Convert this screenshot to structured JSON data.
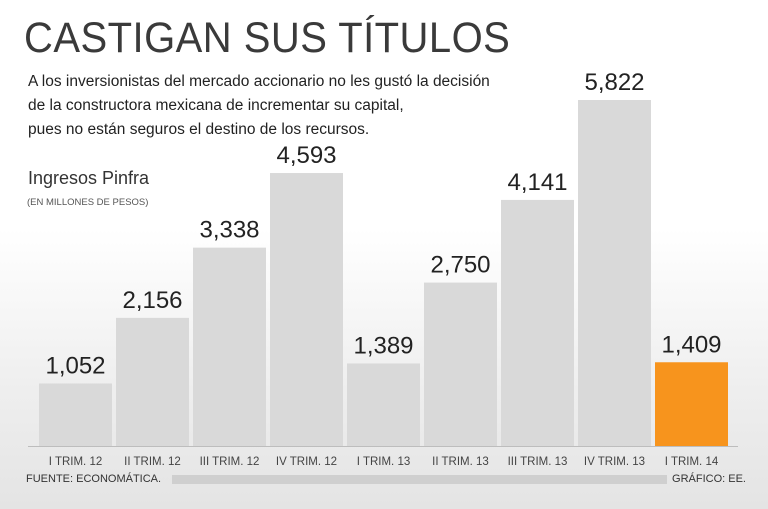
{
  "chart_data": {
    "type": "bar",
    "title": "CASTIGAN SUS TÍTULOS",
    "subtitle": [
      "A los inversionistas del mercado accionario no les gustó la decisión",
      "de la constructora mexicana de incrementar su capital,",
      "pues no están seguros el destino de los recursos."
    ],
    "ylabel": "Ingresos Pinfra",
    "units": "(EN MILLONES DE PESOS)",
    "categories": [
      "I TRIM. 12",
      "II TRIM. 12",
      "III TRIM. 12",
      "IV TRIM. 12",
      "I TRIM. 13",
      "II TRIM. 13",
      "III TRIM. 13",
      "IV TRIM. 13",
      "I TRIM. 14"
    ],
    "values": [
      1052,
      2156,
      3338,
      4593,
      1389,
      2750,
      4141,
      5822,
      1409
    ],
    "data_labels": [
      "1,052",
      "2,156",
      "3,338",
      "4,593",
      "1,389",
      "2,750",
      "4,141",
      "5,822",
      "1,409"
    ],
    "highlight_index": 8,
    "colors": {
      "bar": "#d9d9d9",
      "highlight": "#f7941d"
    },
    "grid": false,
    "source": "FUENTE: ECONOMÁTICA.",
    "credit": "GRÁFICO: EE."
  }
}
